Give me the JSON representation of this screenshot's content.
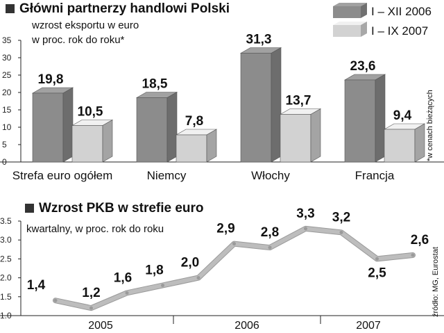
{
  "chart_data": [
    {
      "type": "bar",
      "title": "Główni partnerzy handlowi Polski",
      "subtitle": [
        "wzrost eksportu w euro",
        "w proc. rok do roku*"
      ],
      "categories": [
        "Strefa euro ogółem",
        "Niemcy",
        "Włochy",
        "Francja"
      ],
      "series": [
        {
          "name": "I – XII 2006",
          "values": [
            19.8,
            18.5,
            31.3,
            23.6
          ],
          "labels": [
            "19,8",
            "18,5",
            "31,3",
            "23,6"
          ]
        },
        {
          "name": "I – IX 2007",
          "values": [
            10.5,
            7.8,
            13.7,
            9.4
          ],
          "labels": [
            "10,5",
            "7,8",
            "13,7",
            "9,4"
          ]
        }
      ],
      "ylim": [
        0,
        35
      ],
      "yticks": [
        "0",
        "5",
        "10",
        "15",
        "20",
        "25",
        "30",
        "35"
      ],
      "grid": false,
      "legend": "top-right",
      "note": "*w cenach bieżących",
      "colors": {
        "series1": "#8c8c8c",
        "series2": "#d2d2d2"
      }
    },
    {
      "type": "line",
      "title": "Wzrost PKB w strefie euro",
      "subtitle": "kwartalny, w proc. rok do roku",
      "x": [
        "2005 Q1",
        "2005 Q2",
        "2005 Q3",
        "2005 Q4",
        "2006 Q1",
        "2006 Q2",
        "2006 Q3",
        "2006 Q4",
        "2007 Q1",
        "2007 Q2",
        "2007 Q3"
      ],
      "values": [
        1.4,
        1.2,
        1.6,
        1.8,
        2.0,
        2.9,
        2.8,
        3.3,
        3.2,
        2.5,
        2.6
      ],
      "labels": [
        "1,4",
        "1,2",
        "1,6",
        "1,8",
        "2,0",
        "2,9",
        "2,8",
        "3,3",
        "3,2",
        "2,5",
        "2,6"
      ],
      "years": [
        "2005",
        "2006",
        "2007"
      ],
      "ylim": [
        1.0,
        3.5
      ],
      "yticks": [
        "1.0",
        "1.5",
        "2.0",
        "2.5",
        "3.0",
        "3.5"
      ],
      "grid": false,
      "source": "źródło: MG, Eurostat",
      "colors": {
        "line": "#bdbdbd"
      }
    }
  ]
}
